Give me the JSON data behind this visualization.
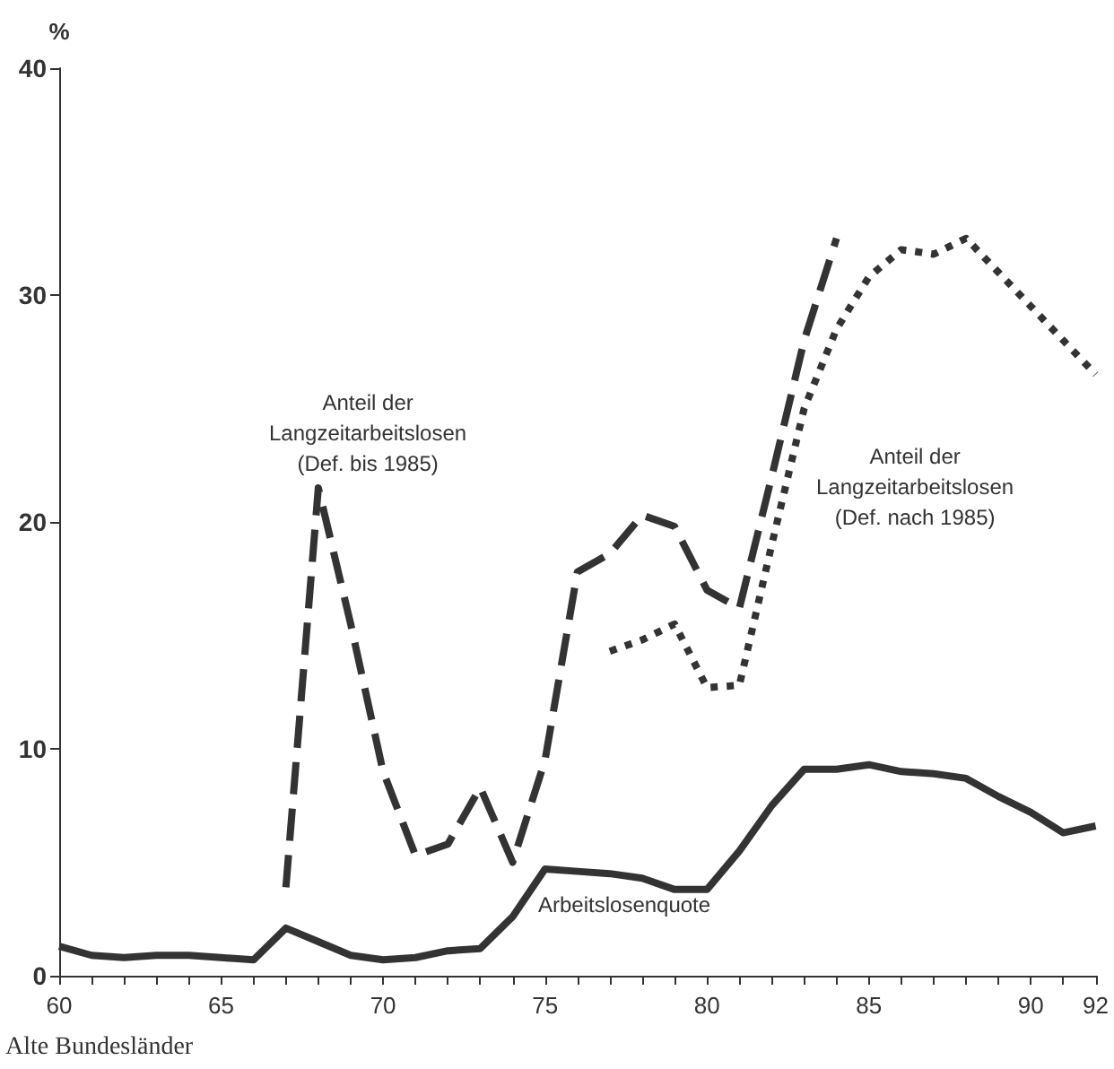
{
  "chart_data": {
    "type": "line",
    "ylabel": "%",
    "annotations": [
      "Alte Bundesländer"
    ],
    "xlim": [
      60,
      92
    ],
    "xticks": [
      60,
      {
        "value": 61,
        "label": null
      },
      {
        "value": 62,
        "label": null
      },
      {
        "value": 63,
        "label": null
      },
      {
        "value": 64,
        "label": null
      },
      65,
      {
        "value": 66,
        "label": null
      },
      {
        "value": 67,
        "label": null
      },
      {
        "value": 68,
        "label": null
      },
      {
        "value": 69,
        "label": null
      },
      70,
      {
        "value": 71,
        "label": null
      },
      {
        "value": 72,
        "label": null
      },
      {
        "value": 73,
        "label": null
      },
      {
        "value": 74,
        "label": null
      },
      75,
      {
        "value": 76,
        "label": null
      },
      {
        "value": 77,
        "label": null
      },
      {
        "value": 78,
        "label": null
      },
      {
        "value": 79,
        "label": null
      },
      80,
      {
        "value": 81,
        "label": null
      },
      {
        "value": 82,
        "label": null
      },
      {
        "value": 83,
        "label": null
      },
      {
        "value": 84,
        "label": null
      },
      85,
      {
        "value": 86,
        "label": null
      },
      {
        "value": 87,
        "label": null
      },
      {
        "value": 88,
        "label": null
      },
      {
        "value": 89,
        "label": null
      },
      90,
      {
        "value": 91,
        "label": null
      },
      92
    ],
    "ylim": [
      0,
      40
    ],
    "yticks": [
      0,
      10,
      20,
      30,
      40
    ],
    "grid": false,
    "legend": false,
    "marker": "none",
    "series": [
      {
        "name": "Anteil der\nLangzeitarbeitslosen\n(Def. bis 1985)",
        "color": "#333333",
        "line_style": "dashed",
        "x": [
          67,
          68,
          69,
          70,
          71,
          72,
          73,
          74,
          75,
          76,
          77,
          78,
          79,
          80,
          81,
          82,
          83,
          84
        ],
        "values": [
          3.9,
          21.5,
          15.5,
          9,
          5.3,
          5.8,
          8.3,
          5.0,
          9.5,
          17.8,
          18.6,
          20.3,
          19.8,
          17,
          16.2,
          22,
          28,
          32.5
        ]
      },
      {
        "name": "Anteil der\nLangzeitarbeitslosen\n(Def. nach 1985)",
        "color": "#333333",
        "line_style": "dotted",
        "x": [
          77,
          78,
          79,
          80,
          81,
          82,
          83,
          84,
          85,
          86,
          87,
          88,
          89,
          90,
          91,
          92
        ],
        "values": [
          14.3,
          14.8,
          15.5,
          12.7,
          12.8,
          19,
          25,
          28.5,
          30.8,
          32,
          31.8,
          32.5,
          31,
          29.5,
          28,
          26.5
        ]
      },
      {
        "name": "Arbeitslosenquote",
        "color": "#333333",
        "line_style": "solid",
        "x": [
          60,
          61,
          62,
          63,
          64,
          65,
          66,
          67,
          68,
          69,
          70,
          71,
          72,
          73,
          74,
          75,
          76,
          77,
          78,
          79,
          80,
          81,
          82,
          83,
          84,
          85,
          86,
          87,
          88,
          89,
          90,
          91,
          92
        ],
        "values": [
          1.3,
          0.9,
          0.8,
          0.9,
          0.9,
          0.8,
          0.7,
          2.1,
          1.5,
          0.9,
          0.7,
          0.8,
          1.1,
          1.2,
          2.6,
          4.7,
          4.6,
          4.5,
          4.3,
          3.8,
          3.8,
          5.5,
          7.5,
          9.1,
          9.1,
          9.3,
          9.0,
          8.9,
          8.7,
          7.9,
          7.2,
          6.3,
          6.6
        ]
      }
    ]
  }
}
